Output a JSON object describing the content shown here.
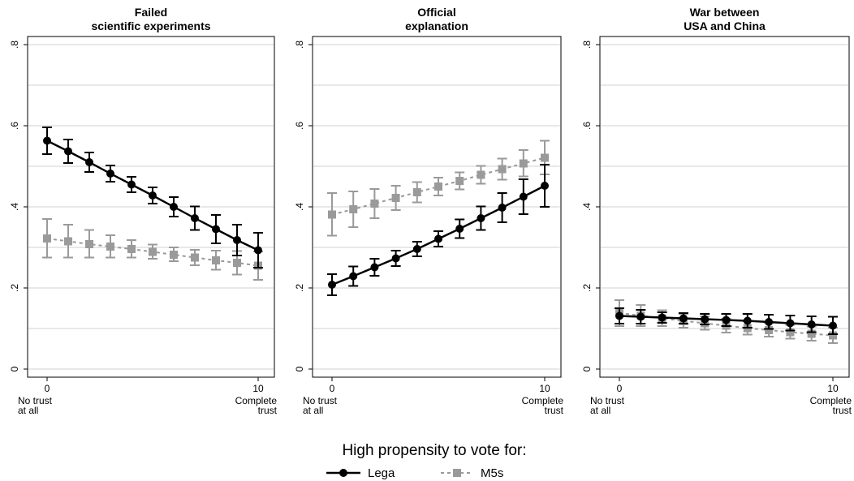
{
  "chart_data": {
    "type": "line",
    "legend": {
      "title": "High propensity to vote for:",
      "position": "bottom",
      "entries": [
        "Lega",
        "M5s"
      ]
    },
    "colors": {
      "Lega": "#000000",
      "M5s": "#9a9a9a"
    },
    "grid": true,
    "panels": [
      {
        "title_lines": [
          "Failed",
          "scientific experiments"
        ],
        "x": [
          0,
          1,
          2,
          3,
          4,
          5,
          6,
          7,
          8,
          9,
          10
        ],
        "x_tick_labels": [
          "0",
          "10"
        ],
        "x_end_labels": {
          "left": [
            "No trust",
            "at all"
          ],
          "right": [
            "Complete",
            "trust"
          ]
        },
        "y_ticks": [
          "0",
          ".2",
          ".4",
          ".6",
          ".8"
        ],
        "ylim": [
          0,
          0.8
        ],
        "series": [
          {
            "name": "Lega",
            "values": [
              0.563,
              0.537,
              0.51,
              0.482,
              0.455,
              0.428,
              0.4,
              0.372,
              0.345,
              0.318,
              0.293
            ],
            "ci_low": [
              0.53,
              0.508,
              0.486,
              0.462,
              0.436,
              0.408,
              0.376,
              0.343,
              0.31,
              0.28,
              0.25
            ],
            "ci_high": [
              0.596,
              0.566,
              0.534,
              0.502,
              0.474,
              0.448,
              0.424,
              0.401,
              0.38,
              0.356,
              0.336
            ]
          },
          {
            "name": "M5s",
            "values": [
              0.322,
              0.315,
              0.308,
              0.302,
              0.296,
              0.289,
              0.282,
              0.275,
              0.268,
              0.262,
              0.255
            ],
            "ci_low": [
              0.275,
              0.275,
              0.275,
              0.275,
              0.275,
              0.272,
              0.266,
              0.256,
              0.245,
              0.233,
              0.22
            ],
            "ci_high": [
              0.37,
              0.356,
              0.343,
              0.33,
              0.318,
              0.307,
              0.3,
              0.294,
              0.292,
              0.291,
              0.29
            ]
          }
        ]
      },
      {
        "title_lines": [
          "Official",
          "explanation"
        ],
        "x": [
          0,
          1,
          2,
          3,
          4,
          5,
          6,
          7,
          8,
          9,
          10
        ],
        "x_tick_labels": [
          "0",
          "10"
        ],
        "x_end_labels": {
          "left": [
            "No trust",
            "at all"
          ],
          "right": [
            "Complete",
            "trust"
          ]
        },
        "y_ticks": [
          "0",
          ".2",
          ".4",
          ".6",
          ".8"
        ],
        "ylim": [
          0,
          0.8
        ],
        "series": [
          {
            "name": "Lega",
            "values": [
              0.208,
              0.229,
              0.251,
              0.273,
              0.296,
              0.321,
              0.346,
              0.372,
              0.398,
              0.425,
              0.452
            ],
            "ci_low": [
              0.182,
              0.205,
              0.23,
              0.254,
              0.278,
              0.302,
              0.323,
              0.343,
              0.362,
              0.382,
              0.4
            ],
            "ci_high": [
              0.234,
              0.253,
              0.272,
              0.292,
              0.314,
              0.34,
              0.369,
              0.401,
              0.434,
              0.468,
              0.504
            ]
          },
          {
            "name": "M5s",
            "values": [
              0.381,
              0.394,
              0.408,
              0.422,
              0.436,
              0.45,
              0.464,
              0.479,
              0.493,
              0.507,
              0.521
            ],
            "ci_low": [
              0.329,
              0.35,
              0.372,
              0.392,
              0.411,
              0.428,
              0.443,
              0.457,
              0.467,
              0.475,
              0.48
            ],
            "ci_high": [
              0.434,
              0.438,
              0.444,
              0.452,
              0.461,
              0.472,
              0.485,
              0.501,
              0.519,
              0.54,
              0.563
            ]
          }
        ]
      },
      {
        "title_lines": [
          "War between",
          "USA and China"
        ],
        "x": [
          0,
          1,
          2,
          3,
          4,
          5,
          6,
          7,
          8,
          9,
          10
        ],
        "x_tick_labels": [
          "0",
          "10"
        ],
        "x_end_labels": {
          "left": [
            "No trust",
            "at all"
          ],
          "right": [
            "Complete",
            "trust"
          ]
        },
        "y_ticks": [
          "0",
          ".2",
          ".4",
          ".6",
          ".8"
        ],
        "ylim": [
          0,
          0.8
        ],
        "series": [
          {
            "name": "Lega",
            "values": [
              0.131,
              0.129,
              0.127,
              0.125,
              0.123,
              0.121,
              0.119,
              0.116,
              0.113,
              0.11,
              0.107
            ],
            "ci_low": [
              0.112,
              0.112,
              0.114,
              0.112,
              0.11,
              0.106,
              0.102,
              0.099,
              0.095,
              0.091,
              0.086
            ],
            "ci_high": [
              0.15,
              0.146,
              0.14,
              0.138,
              0.136,
              0.136,
              0.136,
              0.134,
              0.132,
              0.13,
              0.129
            ]
          },
          {
            "name": "M5s",
            "values": [
              0.138,
              0.132,
              0.125,
              0.119,
              0.113,
              0.107,
              0.101,
              0.096,
              0.091,
              0.087,
              0.083
            ],
            "ci_low": [
              0.106,
              0.106,
              0.106,
              0.102,
              0.097,
              0.09,
              0.085,
              0.08,
              0.075,
              0.07,
              0.064
            ],
            "ci_high": [
              0.17,
              0.158,
              0.145,
              0.136,
              0.13,
              0.124,
              0.118,
              0.114,
              0.109,
              0.105,
              0.102
            ]
          }
        ]
      }
    ]
  }
}
